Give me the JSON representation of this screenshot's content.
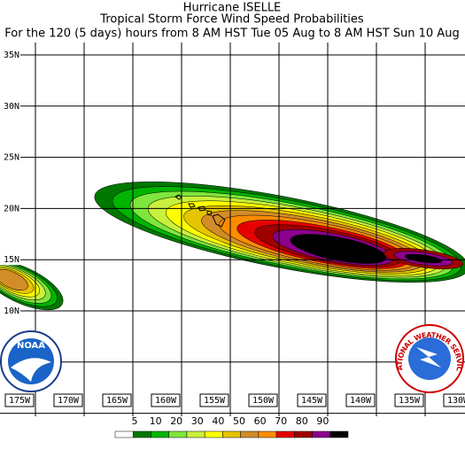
{
  "title": "Hurricane ISELLE",
  "subtitle": "Tropical Storm Force Wind Speed Probabilities",
  "period": "For the 120 (5 days) hours from 8 AM HST Tue 05 Aug to 8 AM HST Sun 10 Aug",
  "lat_labels": [
    "35N",
    "30N",
    "25N",
    "20N",
    "15N",
    "10N"
  ],
  "lon_labels": [
    "175W",
    "170W",
    "165W",
    "160W",
    "155W",
    "150W",
    "145W",
    "140W",
    "135W",
    "130W"
  ],
  "legend": {
    "labels": [
      "5",
      "10",
      "20",
      "30",
      "40",
      "50",
      "60",
      "70",
      "80",
      "90"
    ],
    "colors": [
      "#ffffff",
      "#007800",
      "#00b400",
      "#7ee63c",
      "#c8f03c",
      "#ffff00",
      "#e6c400",
      "#d28c28",
      "#ff8c00",
      "#e60000",
      "#a00000",
      "#8c008c",
      "#000000"
    ]
  },
  "logos": {
    "noaa": "NOAA",
    "nws": "NATIONAL WEATHER SERVICE"
  }
}
